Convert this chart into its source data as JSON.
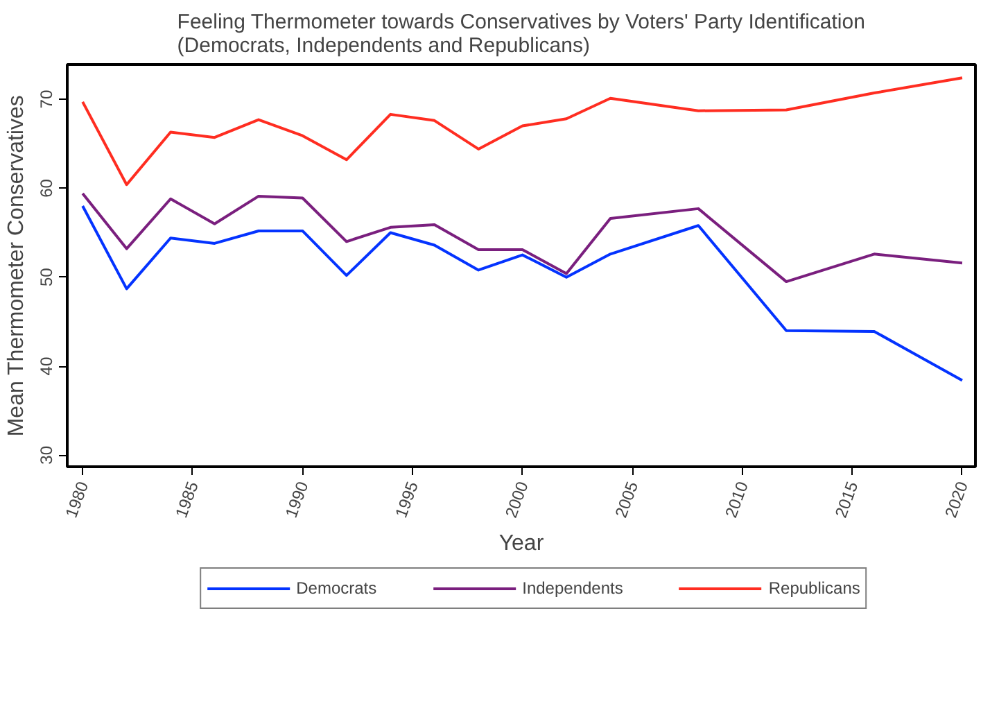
{
  "chart_data": {
    "type": "line",
    "title": "Feeling Thermometer towards Conservatives by Voters' Party Identification\n(Democrats, Independents and Republicans)",
    "xlabel": "Year",
    "ylabel": "Mean Thermometer Conservatives",
    "x": [
      1980,
      1982,
      1984,
      1986,
      1988,
      1990,
      1992,
      1994,
      1996,
      1998,
      2000,
      2002,
      2004,
      2008,
      2012,
      2016,
      2020
    ],
    "series": [
      {
        "name": "Democrats",
        "color": "#0433ff",
        "values": [
          58.0,
          48.7,
          54.4,
          53.8,
          55.2,
          55.2,
          50.2,
          55.0,
          53.6,
          50.8,
          52.5,
          50.0,
          52.6,
          55.8,
          44.0,
          43.9,
          38.4
        ]
      },
      {
        "name": "Independents",
        "color": "#7a1f7e",
        "values": [
          59.4,
          53.2,
          58.8,
          56.0,
          59.1,
          58.9,
          54.0,
          55.6,
          55.9,
          53.1,
          53.1,
          50.4,
          56.6,
          57.7,
          49.5,
          52.6,
          51.6
        ]
      },
      {
        "name": "Republicans",
        "color": "#ff2d21",
        "values": [
          69.7,
          60.4,
          66.3,
          65.7,
          67.7,
          65.9,
          63.2,
          68.3,
          67.6,
          64.4,
          67.0,
          67.8,
          70.1,
          68.7,
          68.8,
          70.7,
          72.4
        ]
      }
    ],
    "xlim": [
      1979.3,
      2020.6
    ],
    "ylim": [
      28.7,
      73.9
    ],
    "xticks": [
      1980,
      1985,
      1990,
      1995,
      2000,
      2005,
      2010,
      2015,
      2020
    ],
    "yticks": [
      30,
      40,
      50,
      60,
      70
    ],
    "grid": false,
    "legend": "bottom",
    "marker": "none",
    "line_style": "solid"
  }
}
